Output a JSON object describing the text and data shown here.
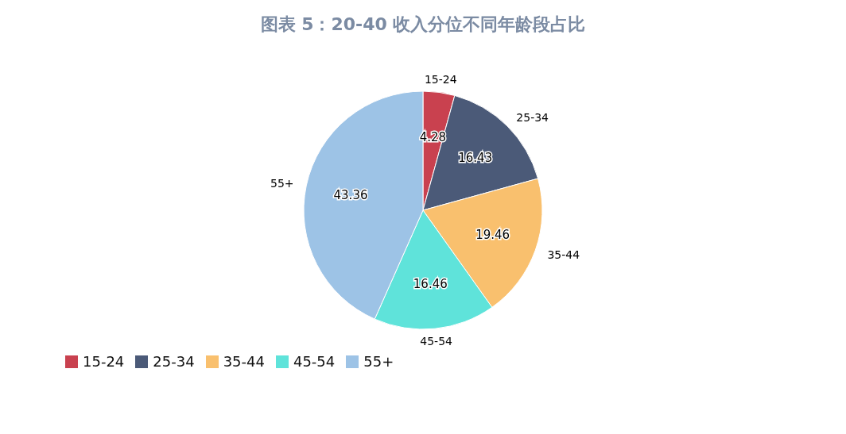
{
  "chart_data": {
    "type": "pie",
    "title": "图表 5：20-40 收入分位不同年龄段占比",
    "categories": [
      "15-24",
      "25-34",
      "35-44",
      "45-54",
      "55+"
    ],
    "values": [
      4.28,
      16.43,
      19.46,
      16.46,
      43.36
    ],
    "colors": [
      "#c9414f",
      "#4b5a78",
      "#f9c06e",
      "#5fe3da",
      "#9dc3e6"
    ],
    "data_labels": true,
    "legend": "bottom left"
  }
}
